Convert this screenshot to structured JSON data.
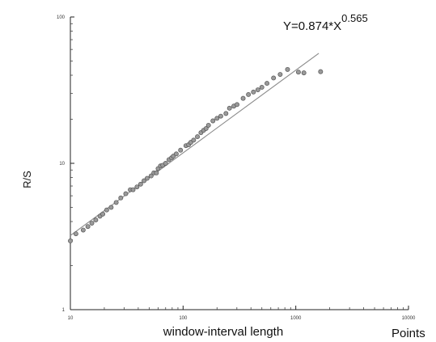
{
  "chart_data": {
    "type": "scatter",
    "title": "",
    "xlabel": "window-interval length",
    "ylabel": "R/S",
    "x_unit_label": "Points",
    "equation": {
      "base": "Y=0.874*X",
      "exponent": "0.565"
    },
    "x_scale": "log",
    "y_scale": "log",
    "xlim": [
      10,
      10000
    ],
    "ylim": [
      1,
      100
    ],
    "grid": false,
    "x_tick_labels": [
      "10",
      "100",
      "1000",
      "10000"
    ],
    "y_tick_labels": [
      "1",
      "10",
      "100"
    ],
    "x_tick_values": [
      10,
      100,
      1000,
      10000
    ],
    "y_tick_values": [
      1,
      10,
      100
    ],
    "fit_line": {
      "coefficient": 0.874,
      "exponent": 0.565,
      "x_range": [
        10,
        1600
      ]
    },
    "series": [
      {
        "x": [
          10,
          11.2,
          13,
          14.3,
          15.5,
          16.8,
          18.3,
          19.4,
          21,
          23,
          25.5,
          28,
          31,
          34,
          36,
          39,
          42,
          45,
          48,
          52,
          55,
          58,
          60,
          63,
          66,
          70,
          75,
          79,
          82,
          87,
          95,
          106,
          112,
          117,
          124,
          134,
          144,
          152,
          160,
          168,
          184,
          200,
          216,
          240,
          258,
          282,
          301,
          341,
          380,
          421,
          461,
          500,
          555,
          635,
          727,
          845,
          1055,
          1180,
          1660
        ],
        "y": [
          2.95,
          3.3,
          3.5,
          3.7,
          3.9,
          4.1,
          4.35,
          4.5,
          4.8,
          5.0,
          5.4,
          5.8,
          6.2,
          6.6,
          6.6,
          6.9,
          7.2,
          7.6,
          7.9,
          8.2,
          8.6,
          8.6,
          9.2,
          9.6,
          9.7,
          10.0,
          10.6,
          10.9,
          11.2,
          11.6,
          12.3,
          13.2,
          13.4,
          13.9,
          14.4,
          15.2,
          16.2,
          16.8,
          17.3,
          18.2,
          19.5,
          20.3,
          21.0,
          21.9,
          23.8,
          24.6,
          25.2,
          27.8,
          29.5,
          30.7,
          31.8,
          33.1,
          35.2,
          38.3,
          40.5,
          43.8,
          42.0,
          41.5,
          42.3
        ]
      }
    ]
  }
}
